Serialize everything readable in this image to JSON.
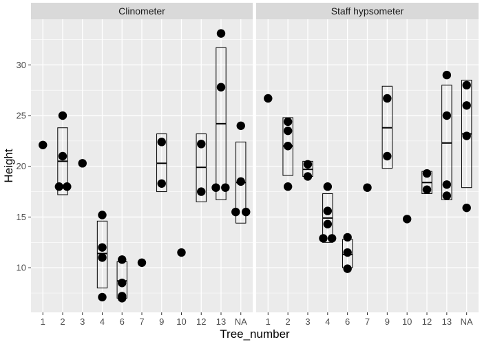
{
  "chart_data": {
    "type": "scatter",
    "overlay": "mean-and-range box per tree",
    "xlabel": "Tree_number",
    "ylabel": "Height",
    "categories": [
      "1",
      "2",
      "3",
      "4",
      "6",
      "7",
      "9",
      "10",
      "12",
      "13",
      "NA"
    ],
    "yticks": [
      10,
      15,
      20,
      25,
      30
    ],
    "ylim": [
      5.6,
      34.5
    ],
    "grid": true,
    "legend": "none",
    "colors": {
      "panel": "#ebebeb",
      "grid": "#ffffff",
      "strip": "#d9d9d9",
      "point": "#000000"
    },
    "panels": [
      {
        "title": "Clinometer",
        "groups": [
          {
            "x": "1",
            "points": [
              {
                "dx": 0,
                "y": 22.1
              }
            ]
          },
          {
            "x": "2",
            "box": [
              17.2,
              20.5,
              23.8
            ],
            "points": [
              {
                "dx": -0.18,
                "y": 18.0
              },
              {
                "dx": 0,
                "y": 25.0
              },
              {
                "dx": 0,
                "y": 21.0
              },
              {
                "dx": 0.22,
                "y": 18.0
              }
            ]
          },
          {
            "x": "3",
            "points": [
              {
                "dx": 0,
                "y": 20.3
              }
            ]
          },
          {
            "x": "4",
            "box": [
              8.0,
              11.4,
              14.6
            ],
            "points": [
              {
                "dx": 0,
                "y": 15.2
              },
              {
                "dx": 0,
                "y": 12.0
              },
              {
                "dx": 0,
                "y": 11.0
              },
              {
                "dx": 0,
                "y": 7.1
              }
            ]
          },
          {
            "x": "6",
            "box": [
              7.0,
              8.7,
              10.6
            ],
            "points": [
              {
                "dx": 0,
                "y": 10.8
              },
              {
                "dx": 0,
                "y": 8.5
              },
              {
                "dx": 0,
                "y": 7.2
              },
              {
                "dx": 0,
                "y": 7.0
              }
            ]
          },
          {
            "x": "7",
            "points": [
              {
                "dx": 0,
                "y": 10.5
              }
            ]
          },
          {
            "x": "9",
            "box": [
              17.5,
              20.3,
              23.2
            ],
            "points": [
              {
                "dx": 0,
                "y": 22.4
              },
              {
                "dx": 0,
                "y": 18.3
              }
            ]
          },
          {
            "x": "10",
            "points": [
              {
                "dx": 0,
                "y": 11.5
              }
            ]
          },
          {
            "x": "12",
            "box": [
              16.5,
              19.9,
              23.2
            ],
            "points": [
              {
                "dx": 0,
                "y": 22.2
              },
              {
                "dx": 0,
                "y": 17.5
              }
            ]
          },
          {
            "x": "13",
            "box": [
              16.7,
              24.2,
              31.7
            ],
            "points": [
              {
                "dx": 0,
                "y": 33.1
              },
              {
                "dx": 0,
                "y": 27.8
              },
              {
                "dx": -0.26,
                "y": 17.9
              },
              {
                "dx": 0.22,
                "y": 17.9
              }
            ]
          },
          {
            "x": "NA",
            "box": [
              14.4,
              18.4,
              22.4
            ],
            "points": [
              {
                "dx": 0,
                "y": 24.0
              },
              {
                "dx": 0,
                "y": 18.5
              },
              {
                "dx": -0.26,
                "y": 15.5
              },
              {
                "dx": 0.26,
                "y": 15.5
              }
            ]
          }
        ]
      },
      {
        "title": "Staff hypsometer",
        "groups": [
          {
            "x": "1",
            "points": [
              {
                "dx": 0,
                "y": 26.7
              }
            ]
          },
          {
            "x": "2",
            "box": [
              19.1,
              22.0,
              24.8
            ],
            "points": [
              {
                "dx": 0,
                "y": 24.4
              },
              {
                "dx": 0,
                "y": 23.5
              },
              {
                "dx": 0,
                "y": 22.0
              },
              {
                "dx": 0,
                "y": 18.0
              }
            ]
          },
          {
            "x": "3",
            "box": [
              19.0,
              19.7,
              20.5
            ],
            "points": [
              {
                "dx": 0,
                "y": 20.2
              },
              {
                "dx": 0,
                "y": 19.0
              }
            ]
          },
          {
            "x": "4",
            "box": [
              12.5,
              14.9,
              17.3
            ],
            "points": [
              {
                "dx": 0,
                "y": 18.0
              },
              {
                "dx": 0,
                "y": 15.6
              },
              {
                "dx": 0,
                "y": 14.3
              },
              {
                "dx": -0.22,
                "y": 12.9
              },
              {
                "dx": 0.22,
                "y": 12.9
              }
            ]
          },
          {
            "x": "6",
            "box": [
              10.0,
              11.3,
              12.8
            ],
            "points": [
              {
                "dx": 0,
                "y": 13.0
              },
              {
                "dx": 0,
                "y": 11.5
              },
              {
                "dx": 0,
                "y": 9.9
              }
            ]
          },
          {
            "x": "7",
            "points": [
              {
                "dx": 0,
                "y": 17.9
              }
            ]
          },
          {
            "x": "9",
            "box": [
              19.8,
              23.8,
              27.9
            ],
            "points": [
              {
                "dx": 0,
                "y": 26.7
              },
              {
                "dx": 0,
                "y": 21.0
              }
            ]
          },
          {
            "x": "10",
            "points": [
              {
                "dx": 0,
                "y": 14.8
              }
            ]
          },
          {
            "x": "12",
            "box": [
              17.3,
              18.4,
              19.5
            ],
            "points": [
              {
                "dx": 0,
                "y": 19.3
              },
              {
                "dx": 0,
                "y": 17.7
              }
            ]
          },
          {
            "x": "13",
            "box": [
              16.7,
              22.3,
              28.0
            ],
            "points": [
              {
                "dx": 0,
                "y": 29.0
              },
              {
                "dx": 0,
                "y": 25.0
              },
              {
                "dx": 0,
                "y": 18.2
              },
              {
                "dx": 0,
                "y": 17.1
              }
            ]
          },
          {
            "x": "NA",
            "box": [
              17.9,
              23.2,
              28.5
            ],
            "points": [
              {
                "dx": 0,
                "y": 28.0
              },
              {
                "dx": 0,
                "y": 26.0
              },
              {
                "dx": 0,
                "y": 23.0
              },
              {
                "dx": 0,
                "y": 15.9
              }
            ]
          }
        ]
      }
    ]
  }
}
